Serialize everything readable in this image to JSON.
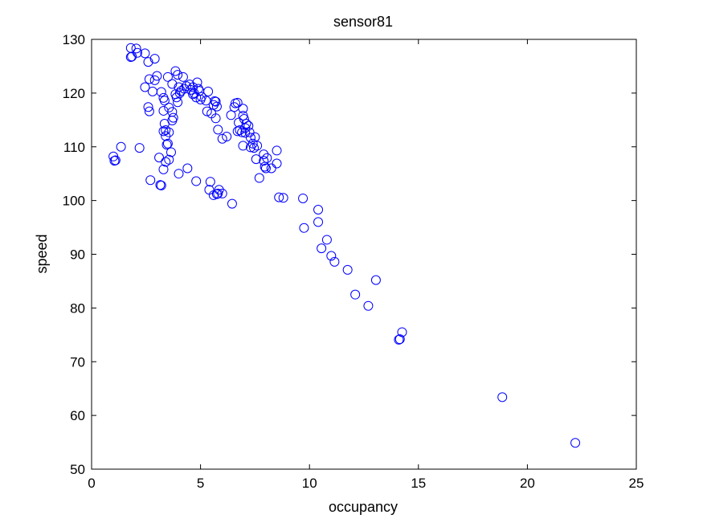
{
  "chart_data": {
    "type": "scatter",
    "title": "sensor81",
    "xlabel": "occupancy",
    "ylabel": "speed",
    "xlim": [
      0,
      25
    ],
    "ylim": [
      50,
      130
    ],
    "xticks": [
      0,
      5,
      10,
      15,
      20,
      25
    ],
    "yticks": [
      50,
      60,
      70,
      80,
      90,
      100,
      110,
      120,
      130
    ],
    "grid": false,
    "marker": "circle-open",
    "color": "#0000ff",
    "series": [
      {
        "points": [
          [
            1.0,
            108.2
          ],
          [
            1.05,
            107.4
          ],
          [
            1.1,
            107.5
          ],
          [
            1.35,
            110.0
          ],
          [
            2.2,
            109.8
          ],
          [
            1.8,
            128.4
          ],
          [
            1.8,
            126.7
          ],
          [
            1.85,
            126.8
          ],
          [
            2.05,
            128.3
          ],
          [
            2.1,
            127.5
          ],
          [
            2.45,
            127.4
          ],
          [
            2.6,
            125.8
          ],
          [
            2.9,
            126.4
          ],
          [
            2.45,
            121.1
          ],
          [
            2.65,
            122.6
          ],
          [
            2.8,
            120.3
          ],
          [
            2.9,
            122.4
          ],
          [
            3.0,
            123.2
          ],
          [
            2.6,
            117.4
          ],
          [
            2.65,
            116.6
          ],
          [
            2.7,
            103.8
          ],
          [
            3.15,
            102.9
          ],
          [
            3.2,
            102.8
          ],
          [
            3.1,
            108.0
          ],
          [
            3.3,
            105.8
          ],
          [
            3.3,
            119.1
          ],
          [
            3.35,
            118.6
          ],
          [
            3.2,
            120.2
          ],
          [
            3.3,
            116.7
          ],
          [
            3.35,
            114.3
          ],
          [
            3.4,
            113.1
          ],
          [
            3.3,
            112.9
          ],
          [
            3.4,
            112.0
          ],
          [
            3.55,
            112.7
          ],
          [
            3.5,
            110.6
          ],
          [
            3.45,
            110.4
          ],
          [
            3.4,
            107.2
          ],
          [
            3.55,
            107.6
          ],
          [
            3.65,
            109.0
          ],
          [
            3.55,
            117.3
          ],
          [
            3.5,
            123.0
          ],
          [
            3.7,
            121.7
          ],
          [
            3.7,
            116.5
          ],
          [
            3.75,
            115.4
          ],
          [
            3.7,
            114.9
          ],
          [
            3.85,
            119.8
          ],
          [
            3.9,
            119.2
          ],
          [
            3.95,
            118.3
          ],
          [
            3.85,
            124.1
          ],
          [
            3.95,
            123.4
          ],
          [
            4.0,
            121.1
          ],
          [
            4.05,
            120.0
          ],
          [
            4.1,
            120.4
          ],
          [
            4.2,
            123.0
          ],
          [
            4.25,
            120.8
          ],
          [
            4.35,
            121.3
          ],
          [
            4.5,
            121.6
          ],
          [
            4.55,
            120.6
          ],
          [
            4.65,
            119.8
          ],
          [
            4.65,
            121.1
          ],
          [
            4.7,
            120.0
          ],
          [
            4.8,
            119.2
          ],
          [
            4.85,
            122.0
          ],
          [
            4.9,
            120.8
          ],
          [
            4.95,
            120.4
          ],
          [
            5.0,
            118.8
          ],
          [
            5.05,
            119.3
          ],
          [
            5.25,
            118.6
          ],
          [
            5.35,
            120.3
          ],
          [
            5.3,
            116.6
          ],
          [
            5.5,
            116.2
          ],
          [
            5.6,
            117.8
          ],
          [
            5.65,
            118.5
          ],
          [
            5.7,
            118.4
          ],
          [
            5.75,
            117.5
          ],
          [
            5.7,
            115.3
          ],
          [
            5.8,
            113.2
          ],
          [
            6.0,
            111.5
          ],
          [
            6.2,
            111.9
          ],
          [
            6.4,
            115.9
          ],
          [
            6.55,
            117.4
          ],
          [
            6.6,
            118.1
          ],
          [
            6.7,
            118.2
          ],
          [
            6.75,
            114.5
          ],
          [
            6.8,
            113.1
          ],
          [
            6.7,
            112.9
          ],
          [
            6.9,
            112.7
          ],
          [
            6.95,
            117.1
          ],
          [
            6.95,
            115.8
          ],
          [
            7.0,
            115.2
          ],
          [
            7.05,
            113.5
          ],
          [
            7.05,
            112.6
          ],
          [
            6.95,
            110.2
          ],
          [
            7.1,
            114.3
          ],
          [
            7.2,
            113.9
          ],
          [
            7.25,
            112.7
          ],
          [
            7.3,
            111.7
          ],
          [
            7.3,
            109.9
          ],
          [
            7.4,
            110.6
          ],
          [
            7.45,
            109.8
          ],
          [
            7.5,
            111.8
          ],
          [
            7.6,
            110.2
          ],
          [
            7.55,
            107.7
          ],
          [
            7.7,
            104.2
          ],
          [
            7.9,
            108.6
          ],
          [
            7.9,
            107.4
          ],
          [
            7.95,
            106.3
          ],
          [
            8.0,
            106.0
          ],
          [
            8.05,
            107.9
          ],
          [
            8.25,
            106.0
          ],
          [
            8.5,
            109.3
          ],
          [
            8.5,
            106.9
          ],
          [
            8.6,
            100.6
          ],
          [
            8.8,
            100.5
          ],
          [
            4.0,
            105.0
          ],
          [
            4.4,
            106.0
          ],
          [
            4.8,
            103.6
          ],
          [
            5.4,
            102.0
          ],
          [
            5.45,
            103.5
          ],
          [
            5.6,
            101.0
          ],
          [
            5.75,
            101.2
          ],
          [
            5.8,
            101.3
          ],
          [
            5.85,
            102.0
          ],
          [
            6.0,
            101.3
          ],
          [
            6.45,
            99.4
          ],
          [
            9.7,
            100.4
          ],
          [
            9.75,
            94.9
          ],
          [
            10.4,
            98.3
          ],
          [
            10.4,
            96.0
          ],
          [
            10.55,
            91.1
          ],
          [
            10.8,
            92.7
          ],
          [
            11.0,
            89.7
          ],
          [
            11.15,
            88.6
          ],
          [
            11.75,
            87.1
          ],
          [
            12.1,
            82.5
          ],
          [
            12.7,
            80.4
          ],
          [
            13.05,
            85.2
          ],
          [
            14.1,
            74.1
          ],
          [
            14.15,
            74.2
          ],
          [
            14.25,
            75.5
          ],
          [
            18.85,
            63.4
          ],
          [
            22.2,
            54.9
          ]
        ]
      }
    ]
  }
}
